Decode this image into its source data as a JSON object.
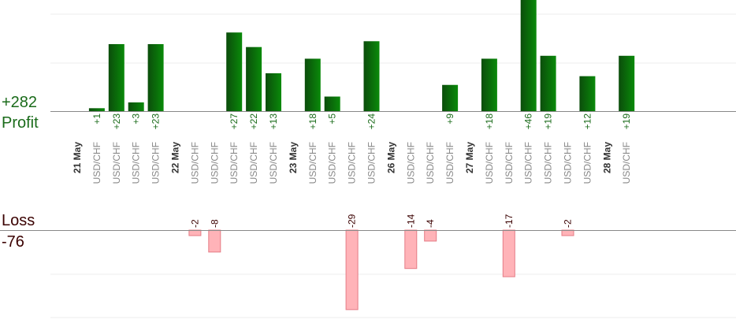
{
  "summary": {
    "profit_total": "+282",
    "profit_label": "Profit",
    "loss_label": "Loss",
    "loss_total": "-76"
  },
  "colors": {
    "profit_dark": "#0b4d0b",
    "profit_light": "#0a8a0a",
    "loss_fill": "#ffb3b8",
    "loss_stroke": "#e57c85",
    "profit_text": "#1a6b1a",
    "loss_text": "#3a0000",
    "date_text": "#333333",
    "symbol_text": "#888888",
    "grid": "#eeeeee",
    "baseline": "#888888"
  },
  "chart_data": {
    "type": "bar",
    "title": "",
    "xlabel": "",
    "ylabel": "",
    "grid": true,
    "profit_scale_max": 46,
    "loss_scale_max": 46,
    "columns": [
      {
        "kind": "date",
        "label": "21 May"
      },
      {
        "kind": "trade",
        "label": "USD/CHF",
        "value": 1
      },
      {
        "kind": "trade",
        "label": "USD/CHF",
        "value": 23
      },
      {
        "kind": "trade",
        "label": "USD/CHF",
        "value": 3
      },
      {
        "kind": "trade",
        "label": "USD/CHF",
        "value": 23
      },
      {
        "kind": "date",
        "label": "22 May"
      },
      {
        "kind": "trade",
        "label": "USD/CHF",
        "value": -2
      },
      {
        "kind": "trade",
        "label": "USD/CHF",
        "value": -8
      },
      {
        "kind": "trade",
        "label": "USD/CHF",
        "value": 27
      },
      {
        "kind": "trade",
        "label": "USD/CHF",
        "value": 22
      },
      {
        "kind": "trade",
        "label": "USD/CHF",
        "value": 13
      },
      {
        "kind": "date",
        "label": "23 May"
      },
      {
        "kind": "trade",
        "label": "USD/CHF",
        "value": 18
      },
      {
        "kind": "trade",
        "label": "USD/CHF",
        "value": 5
      },
      {
        "kind": "trade",
        "label": "USD/CHF",
        "value": -29
      },
      {
        "kind": "trade",
        "label": "USD/CHF",
        "value": 24
      },
      {
        "kind": "date",
        "label": "26 May"
      },
      {
        "kind": "trade",
        "label": "USD/CHF",
        "value": -14
      },
      {
        "kind": "trade",
        "label": "USD/CHF",
        "value": -4
      },
      {
        "kind": "trade",
        "label": "USD/CHF",
        "value": 9
      },
      {
        "kind": "date",
        "label": "27 May"
      },
      {
        "kind": "trade",
        "label": "USD/CHF",
        "value": 18
      },
      {
        "kind": "trade",
        "label": "USD/CHF",
        "value": -17
      },
      {
        "kind": "trade",
        "label": "USD/CHF",
        "value": 46
      },
      {
        "kind": "trade",
        "label": "USD/CHF",
        "value": 19
      },
      {
        "kind": "trade",
        "label": "USD/CHF",
        "value": -2
      },
      {
        "kind": "trade",
        "label": "USD/CHF",
        "value": 12
      },
      {
        "kind": "date",
        "label": "28 May"
      },
      {
        "kind": "trade",
        "label": "USD/CHF",
        "value": 19
      }
    ]
  }
}
